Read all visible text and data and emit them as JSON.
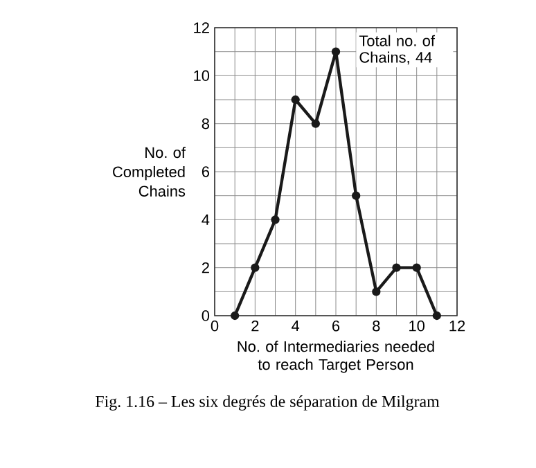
{
  "chart_data": {
    "type": "line",
    "x": [
      1,
      2,
      3,
      4,
      5,
      6,
      7,
      8,
      9,
      10,
      11
    ],
    "series": [
      {
        "color": "#1a1a1a",
        "values": [
          0,
          2,
          4,
          9,
          8,
          11,
          5,
          1,
          2,
          2,
          0
        ]
      }
    ],
    "xlabel": "No. of Intermediaries needed to reach Target Person",
    "ylabel": "No. of Completed Chains",
    "xlim": [
      0,
      12
    ],
    "ylim": [
      0,
      12
    ],
    "xticks": [
      0,
      {
        "value": 1,
        "label": null
      },
      2,
      {
        "value": 3,
        "label": null
      },
      4,
      {
        "value": 5,
        "label": null
      },
      6,
      {
        "value": 7,
        "label": null
      },
      8,
      {
        "value": 9,
        "label": null
      },
      10,
      {
        "value": 11,
        "label": null
      },
      12
    ],
    "yticks": [
      0,
      {
        "value": 1,
        "label": null
      },
      2,
      {
        "value": 3,
        "label": null
      },
      4,
      {
        "value": 5,
        "label": null
      },
      6,
      {
        "value": 7,
        "label": null
      },
      8,
      {
        "value": 9,
        "label": null
      },
      10,
      {
        "value": 11,
        "label": null
      },
      12
    ],
    "grid": true,
    "marker": "circle",
    "line_style": "solid",
    "annotations": [
      "Total no. of Chains, 44",
      "Fig. 1.16 – Les six degrés de séparation de Milgram"
    ]
  }
}
